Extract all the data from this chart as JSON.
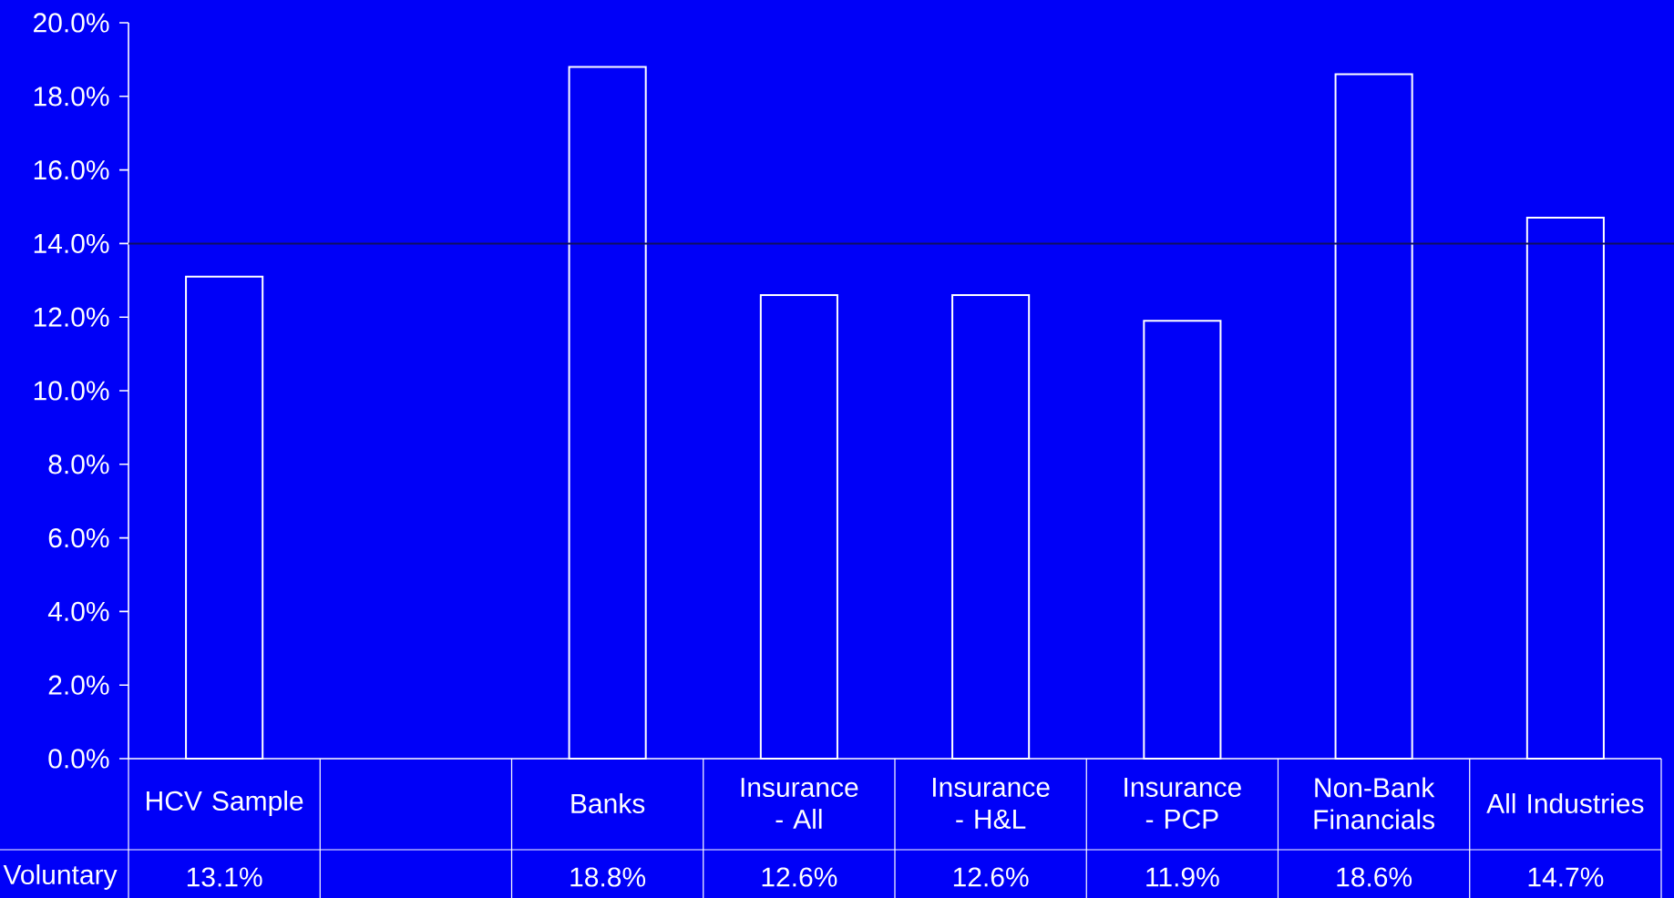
{
  "chart_data": {
    "type": "bar",
    "categories": [
      "HCV Sample",
      null,
      "Banks",
      "Insurance - All",
      "Insurance - H&L",
      "Insurance - PCP",
      "Non-Bank Financials",
      "All Industries"
    ],
    "series": [
      {
        "name": "Voluntary",
        "color": "#ffffff",
        "values": [
          13.1,
          null,
          18.8,
          12.6,
          12.6,
          11.9,
          18.6,
          14.7
        ],
        "value_labels": [
          "13.1%",
          null,
          "18.8%",
          "12.6%",
          "12.6%",
          "11.9%",
          "18.6%",
          "14.7%"
        ]
      }
    ],
    "ylim": [
      0,
      20
    ],
    "yticks": [
      {
        "value": 0,
        "label": "0.0%"
      },
      {
        "value": 2,
        "label": "2.0%"
      },
      {
        "value": 4,
        "label": "4.0%"
      },
      {
        "value": 6,
        "label": "6.0%"
      },
      {
        "value": 8,
        "label": "8.0%"
      },
      {
        "value": 10,
        "label": "10.0%"
      },
      {
        "value": 12,
        "label": "12.0%"
      },
      {
        "value": 14,
        "label": "14.0%"
      },
      {
        "value": 16,
        "label": "16.0%"
      },
      {
        "value": 18,
        "label": "18.0%"
      },
      {
        "value": 20,
        "label": "20.0%"
      }
    ],
    "ref_lines": [
      {
        "axis": "y",
        "value": 14,
        "color": "#101060"
      }
    ],
    "grid": false,
    "legend": false
  }
}
